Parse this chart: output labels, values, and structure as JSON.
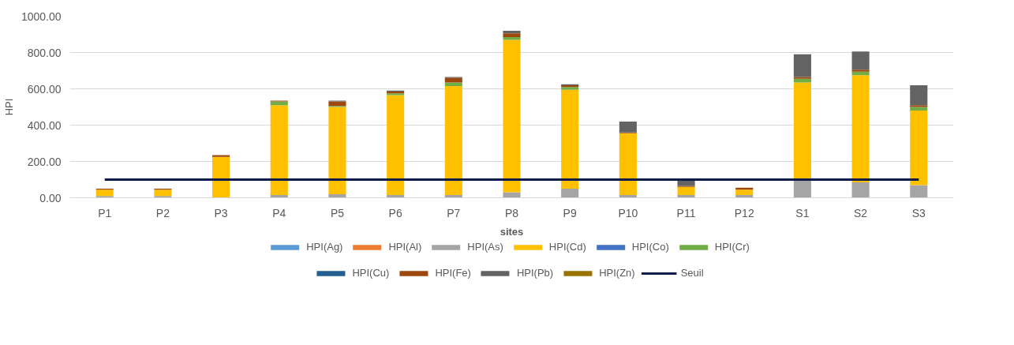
{
  "chart_data": {
    "type": "bar",
    "stacked": true,
    "xlabel": "sites",
    "ylabel": "HPI",
    "categories": [
      "P1",
      "P2",
      "P3",
      "P4",
      "P5",
      "P6",
      "P7",
      "P8",
      "P9",
      "P10",
      "P11",
      "P12",
      "S1",
      "S2",
      "S3"
    ],
    "series": [
      {
        "name": "HPI(Ag)",
        "color": "#5b9bd5",
        "values": [
          0,
          0,
          0,
          0,
          0,
          0,
          0,
          0,
          0,
          0,
          0,
          0,
          0,
          0,
          0
        ]
      },
      {
        "name": "HPI(Al)",
        "color": "#ed7d31",
        "values": [
          0,
          0,
          0,
          0,
          0,
          0,
          0,
          0,
          0,
          0,
          0,
          0,
          0,
          0,
          0
        ]
      },
      {
        "name": "HPI(As)",
        "color": "#a5a5a5",
        "values": [
          10,
          10,
          null,
          15,
          20,
          15,
          15,
          30,
          50,
          15,
          15,
          15,
          95,
          85,
          70
        ]
      },
      {
        "name": "HPI(Cd)",
        "color": "#ffc000",
        "values": [
          35,
          35,
          225,
          495,
          480,
          550,
          600,
          840,
          545,
          340,
          45,
          30,
          540,
          590,
          410
        ]
      },
      {
        "name": "HPI(Co)",
        "color": "#4472c4",
        "values": [
          0,
          0,
          0,
          0,
          0,
          0,
          0,
          0,
          0,
          0,
          0,
          0,
          0,
          0,
          0
        ]
      },
      {
        "name": "HPI(Cr)",
        "color": "#70ad47",
        "values": [
          0,
          0,
          0,
          20,
          5,
          10,
          20,
          15,
          15,
          0,
          0,
          0,
          20,
          20,
          20
        ]
      },
      {
        "name": "HPI(Cu)",
        "color": "#255e91",
        "values": [
          0,
          0,
          0,
          0,
          0,
          0,
          0,
          0,
          0,
          0,
          0,
          0,
          0,
          0,
          0
        ]
      },
      {
        "name": "HPI(Fe)",
        "color": "#9e480e",
        "values": [
          5,
          5,
          10,
          5,
          25,
          10,
          25,
          20,
          10,
          5,
          5,
          10,
          10,
          10,
          10
        ]
      },
      {
        "name": "HPI(Pb)",
        "color": "#636363",
        "values": [
          0,
          0,
          0,
          0,
          5,
          5,
          5,
          15,
          5,
          60,
          30,
          0,
          125,
          100,
          110
        ]
      },
      {
        "name": "HPI(Zn)",
        "color": "#997300",
        "values": [
          0,
          0,
          0,
          0,
          0,
          0,
          0,
          0,
          0,
          0,
          0,
          0,
          0,
          0,
          0
        ]
      },
      {
        "name": "Seuil",
        "type": "line",
        "color": "#0d1b4a",
        "values": [
          100,
          100,
          100,
          100,
          100,
          100,
          100,
          100,
          100,
          100,
          100,
          100,
          100,
          100,
          100
        ]
      }
    ],
    "ylim": [
      0,
      1000
    ],
    "yticks": [
      {
        "value": 0,
        "label": "0.00"
      },
      {
        "value": 200,
        "label": "200.00"
      },
      {
        "value": 400,
        "label": "400.00"
      },
      {
        "value": 600,
        "label": "600.00"
      },
      {
        "value": 800,
        "label": "800.00"
      },
      {
        "value": 1000,
        "label": "1000.00"
      }
    ],
    "grid": "y",
    "legend": "bottom"
  }
}
